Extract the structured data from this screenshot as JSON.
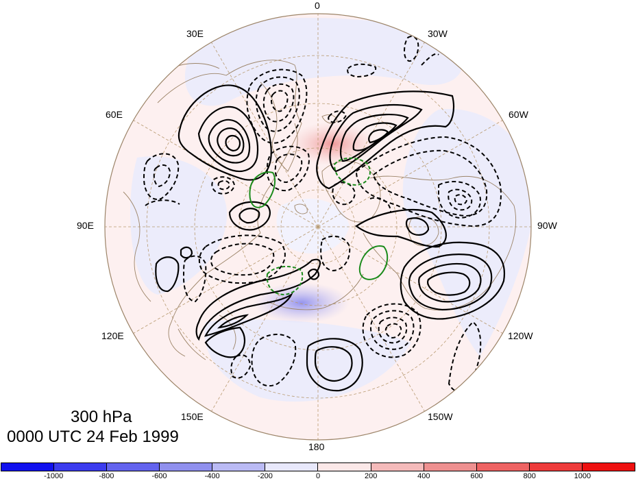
{
  "title": {
    "level": "300 hPa",
    "time": "0000 UTC 24 Feb 1999"
  },
  "projection": "north-polar-stereographic",
  "longitude_labels": [
    "0",
    "30W",
    "60W",
    "90W",
    "120W",
    "150W",
    "180",
    "150E",
    "120E",
    "90E",
    "60E",
    "30E"
  ],
  "colorbar": {
    "labels": [
      "-1000",
      "-800",
      "-600",
      "-400",
      "-200",
      "0",
      "200",
      "400",
      "600",
      "800",
      "1000"
    ],
    "colors": [
      "#1010ee",
      "#3b3bee",
      "#6363ee",
      "#9090ee",
      "#babaf4",
      "#e8e8fb",
      "#fbe8e8",
      "#f4baba",
      "#ee9090",
      "#ee6363",
      "#ee3b3b",
      "#ee1010"
    ]
  },
  "contours": {
    "positive_style": "solid-black",
    "negative_style": "dashed-black",
    "highlight_color": "#1a8a1a"
  }
}
